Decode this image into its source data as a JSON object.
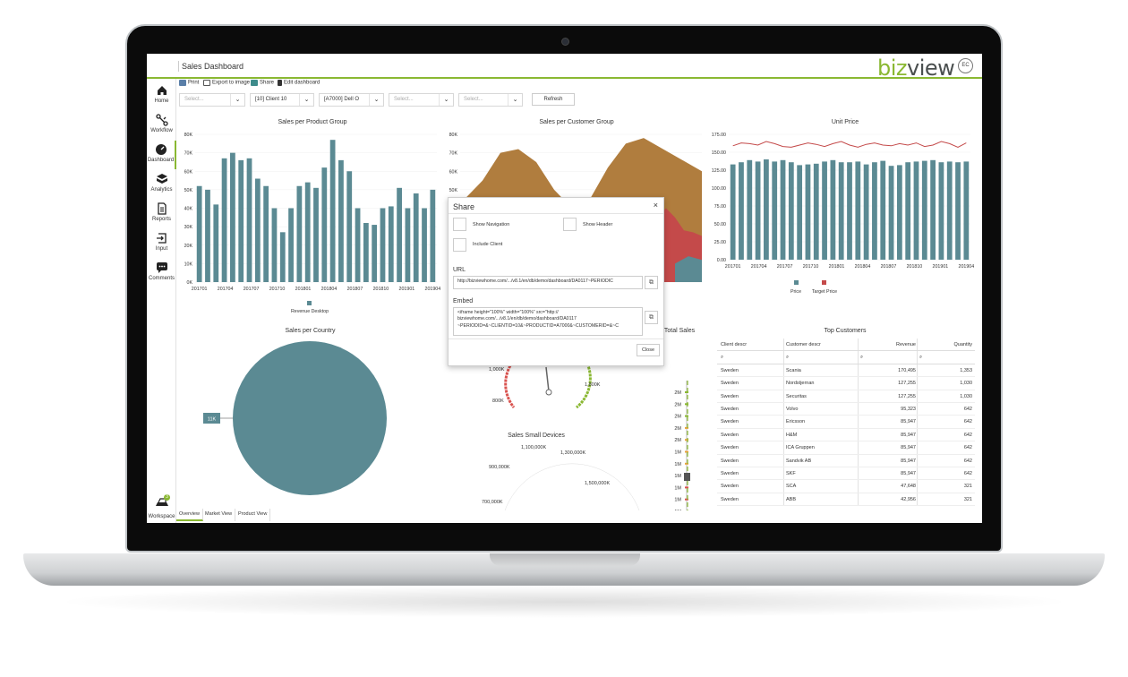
{
  "header": {
    "title": "Sales Dashboard",
    "logo_part1": "biz",
    "logo_part2": "view",
    "user_initials": "EC"
  },
  "sidebar": {
    "items": [
      {
        "label": "Home",
        "icon": "home-icon"
      },
      {
        "label": "Workflow",
        "icon": "workflow-icon"
      },
      {
        "label": "Dashboard",
        "icon": "dashboard-icon"
      },
      {
        "label": "Analytics",
        "icon": "analytics-icon"
      },
      {
        "label": "Reports",
        "icon": "reports-icon"
      },
      {
        "label": "Input",
        "icon": "input-icon"
      },
      {
        "label": "Comments",
        "icon": "comments-icon"
      }
    ],
    "active": "Dashboard",
    "workspace_label": "Workspace",
    "workspace_badge": "3"
  },
  "toolbar": {
    "print": "Print",
    "export": "Export to image",
    "share": "Share",
    "edit": "Edit dashboard"
  },
  "filters": [
    {
      "value": "Select...",
      "is_placeholder": true
    },
    {
      "value": "[10] Client 10",
      "is_placeholder": false
    },
    {
      "value": "[A7000] Dell O",
      "is_placeholder": false
    },
    {
      "value": "Select...",
      "is_placeholder": true
    },
    {
      "value": "Select...",
      "is_placeholder": true
    }
  ],
  "refresh_label": "Refresh",
  "tabs": [
    {
      "label": "Overview",
      "active": true
    },
    {
      "label": "Market View",
      "active": false
    },
    {
      "label": "Product View",
      "active": false
    }
  ],
  "colors": {
    "accent": "#8ab832",
    "teal": "#5b8a93",
    "brown": "#b07d3e",
    "red": "#c44a4a",
    "gauge_green": "#8ab832",
    "gauge_orange": "#e8a33d",
    "gauge_red": "#d9534f"
  },
  "chart_data": [
    {
      "id": "sales-per-product-group",
      "type": "bar",
      "title": "Sales per Product Group",
      "y_ticks": [
        "0K",
        "10K",
        "20K",
        "30K",
        "40K",
        "50K",
        "60K",
        "70K",
        "80K"
      ],
      "ylim": [
        0,
        80000
      ],
      "x_ticks": [
        "201701",
        "201704",
        "201707",
        "201710",
        "201801",
        "201804",
        "201807",
        "201810",
        "201901",
        "201904"
      ],
      "values": [
        52000,
        50000,
        42000,
        67000,
        70000,
        66000,
        67000,
        56000,
        52000,
        40000,
        27000,
        40000,
        52000,
        54000,
        51000,
        62000,
        77000,
        66000,
        60000,
        40000,
        32000,
        31000,
        40000,
        41000,
        51000,
        40000,
        48000,
        40000,
        50000
      ],
      "series": [
        {
          "name": "Revenue Desktop",
          "color": "#5b8a93"
        }
      ],
      "legend_position": "bottom"
    },
    {
      "id": "sales-per-customer-group",
      "type": "area",
      "title": "Sales per Customer Group",
      "y_ticks": [
        "0K",
        "10K",
        "20K",
        "30K",
        "40K",
        "50K",
        "60K",
        "70K",
        "80K"
      ],
      "ylim": [
        0,
        80000
      ],
      "visible_peaks": [
        {
          "series": "brown",
          "values": [
            45000,
            55000,
            70000,
            72000,
            65000,
            50000,
            40000,
            45000,
            62000,
            75000,
            78000
          ]
        },
        {
          "series": "red",
          "values": [
            35000,
            40000,
            35000,
            28000,
            27000,
            25000
          ]
        },
        {
          "series": "teal",
          "values": [
            10000,
            14000,
            12000
          ]
        }
      ]
    },
    {
      "id": "unit-price",
      "type": "bar",
      "title": "Unit Price",
      "y_ticks": [
        "0.00",
        "25.00",
        "50.00",
        "75.00",
        "100.00",
        "125.00",
        "150.00",
        "175.00"
      ],
      "ylim": [
        0,
        175
      ],
      "x_ticks": [
        "201701",
        "201704",
        "201707",
        "201710",
        "201801",
        "201804",
        "201807",
        "201810",
        "201901",
        "201904"
      ],
      "price": [
        133,
        136,
        139,
        137,
        140,
        137,
        139,
        136,
        132,
        133,
        134,
        137,
        139,
        136,
        136,
        137,
        133,
        136,
        138,
        131,
        132,
        136,
        137,
        138,
        139,
        136,
        137,
        136,
        137
      ],
      "target_price": [
        159,
        163,
        162,
        160,
        165,
        162,
        158,
        157,
        160,
        163,
        161,
        158,
        162,
        165,
        160,
        157,
        161,
        163,
        160,
        159,
        162,
        160,
        163,
        158,
        160,
        165,
        162,
        157,
        163
      ],
      "series": [
        {
          "name": "Price",
          "color": "#5b8a93"
        },
        {
          "name": "Target Price",
          "color": "#c44a4a"
        }
      ],
      "legend_position": "bottom"
    },
    {
      "id": "sales-per-country",
      "type": "pie",
      "title": "Sales per Country",
      "slices": [
        {
          "label": "11K",
          "value": 11000,
          "color": "#5b8a93"
        }
      ]
    },
    {
      "id": "total-sales",
      "type": "gauge",
      "title": "Total Sales",
      "ticks": [
        "2M",
        "2M",
        "2M",
        "2M",
        "2M",
        "1M",
        "1M",
        "1M",
        "1M",
        "1M",
        "1M",
        "1M"
      ]
    }
  ],
  "gauge_labels": {
    "left_label": "800K",
    "top_left_label": "1,000K",
    "right_label": "1,800K",
    "small_devices_title": "Sales Small Devices",
    "sd_labels": [
      "1,100,000K",
      "1,300,000K",
      "900,000K",
      "1,500,000K",
      "700,000K"
    ]
  },
  "top_customers": {
    "title": "Top Customers",
    "columns": [
      "Client descr",
      "Customer descr",
      "Revenue",
      "Quantity"
    ],
    "rows": [
      [
        "Sweden",
        "Scania",
        "170,495",
        "1,353"
      ],
      [
        "Sweden",
        "Nordstjernan",
        "127,255",
        "1,030"
      ],
      [
        "Sweden",
        "Securitas",
        "127,255",
        "1,030"
      ],
      [
        "Sweden",
        "Volvo",
        "95,323",
        "642"
      ],
      [
        "Sweden",
        "Ericsson",
        "85,947",
        "642"
      ],
      [
        "Sweden",
        "H&M",
        "85,947",
        "642"
      ],
      [
        "Sweden",
        "ICA Gruppen",
        "85,947",
        "642"
      ],
      [
        "Sweden",
        "Sandvik AB",
        "85,947",
        "642"
      ],
      [
        "Sweden",
        "SKF",
        "85,947",
        "642"
      ],
      [
        "Sweden",
        "SCA",
        "47,648",
        "321"
      ],
      [
        "Sweden",
        "ABB",
        "42,956",
        "321"
      ]
    ]
  },
  "share_modal": {
    "title": "Share",
    "close_symbol": "×",
    "show_navigation": "Show Navigation",
    "show_header": "Show Header",
    "include_client": "Include Client",
    "url_label": "URL",
    "url_value": "http://bizviewhome.com/.../v8.1/en/db/demo/dashboard/DA0117~PERIODIC",
    "embed_label": "Embed",
    "embed_value": "<iframe height=\"100%\" width=\"100%\" src=\"http:// bizviewhome.com/.../v8.1/en/db/demo/dashboard/DA0117 ~PERIODID=&~CLIENTID=10&~PRODUCTID=A7000&~CUSTOMERID=&~C",
    "close_button": "Close"
  }
}
